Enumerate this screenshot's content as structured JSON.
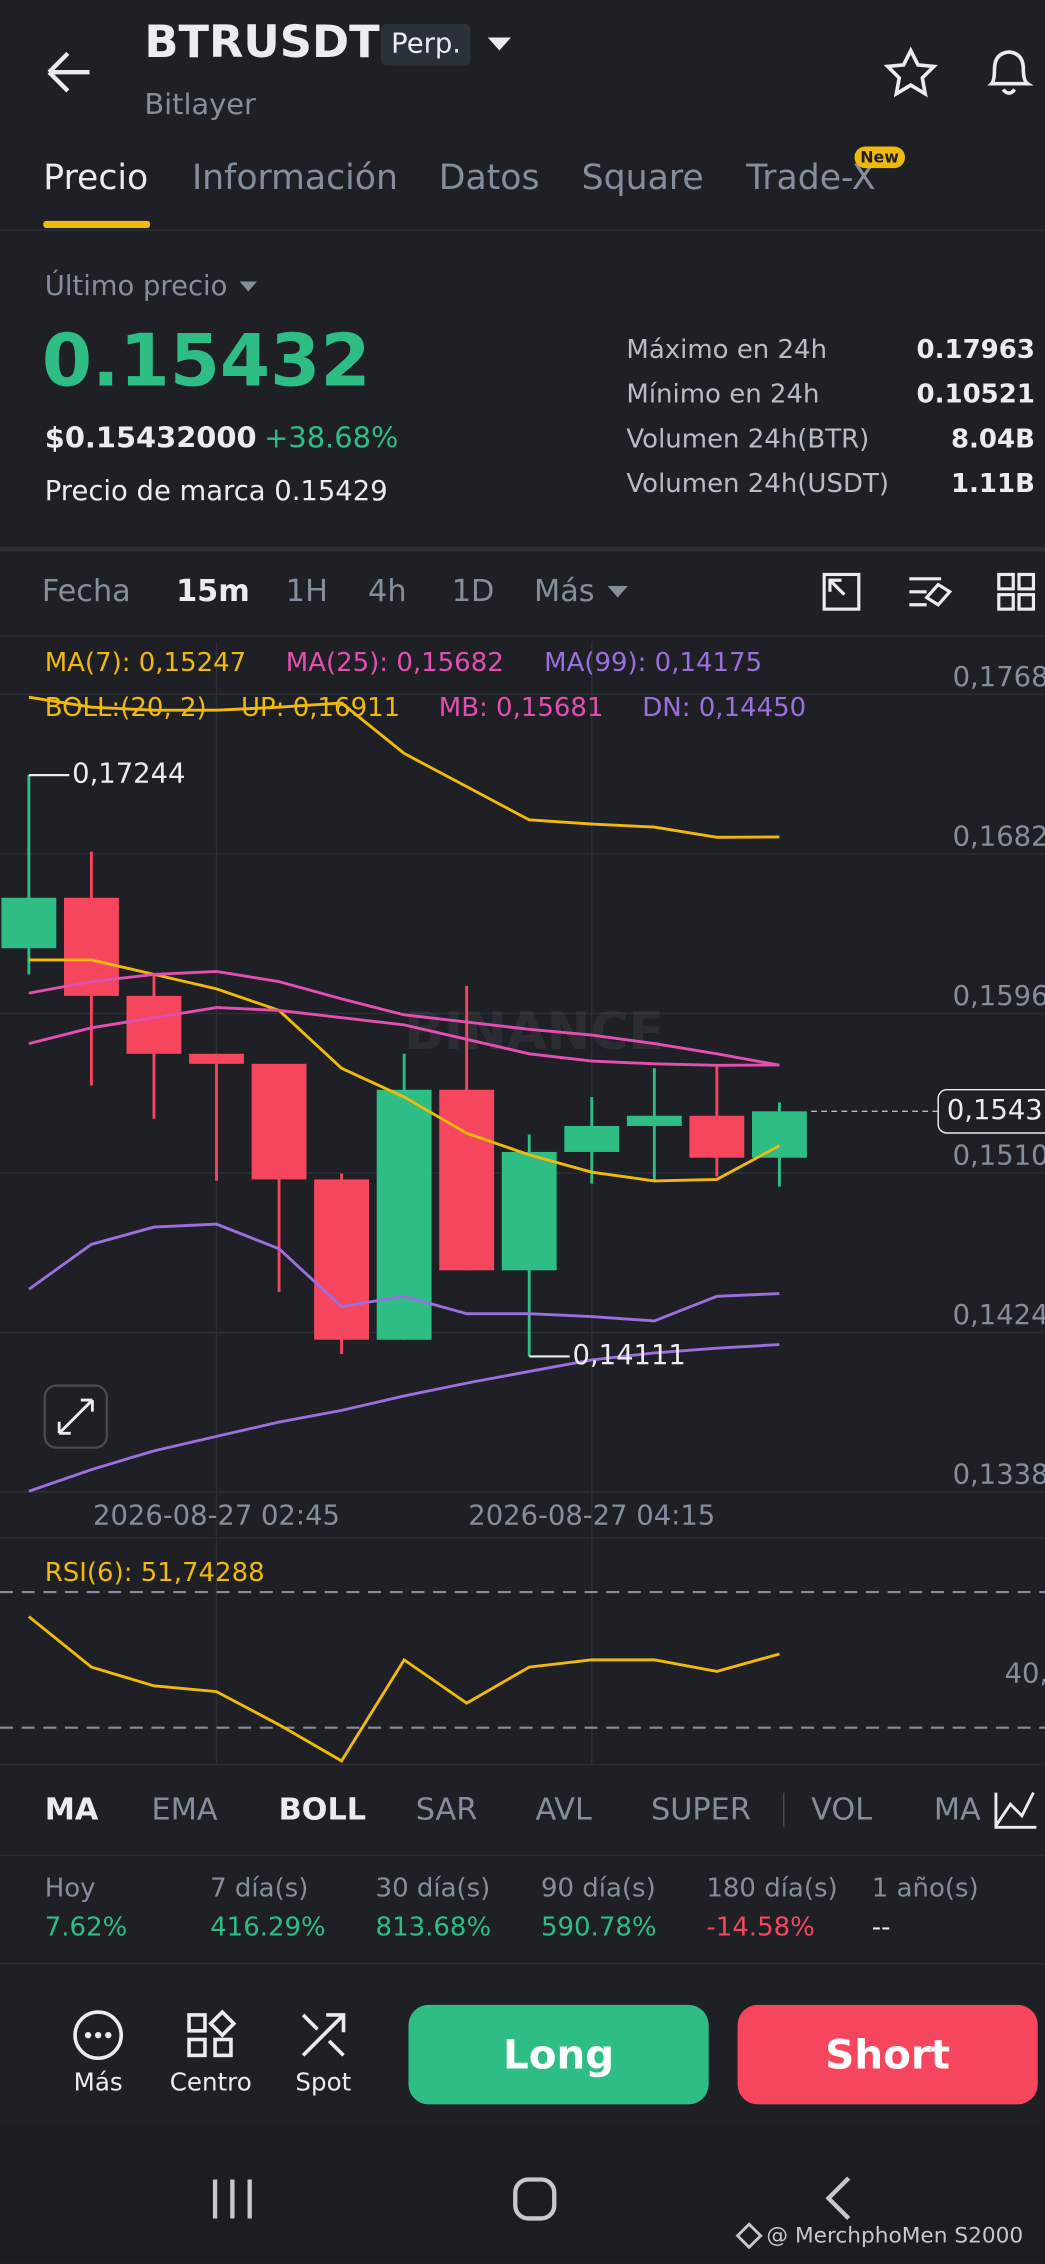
{
  "header": {
    "title": "BTRUSDT",
    "badge": "Perp.",
    "subtitle": "Bitlayer"
  },
  "tabs": {
    "items": [
      "Precio",
      "Información",
      "Datos",
      "Square",
      "Trade-X"
    ],
    "badge": "New"
  },
  "price": {
    "label": "Último precio",
    "last": "0.15432",
    "usd": "$0.15432000",
    "change": "+38.68%",
    "mark_label": "Precio de marca",
    "mark": "0.15429"
  },
  "stats": [
    [
      "Máximo en 24h",
      "0.17963"
    ],
    [
      "Mínimo en 24h",
      "0.10521"
    ],
    [
      "Volumen 24h(BTR)",
      "8.04B"
    ],
    [
      "Volumen 24h(USDT)",
      "1.11B"
    ]
  ],
  "timeframes": [
    "Fecha",
    "15m",
    "1H",
    "4h",
    "1D",
    "Más"
  ],
  "chart_data": [
    {
      "type": "candlestick",
      "categories": [
        null,
        null,
        null,
        "2026-08-27 02:45",
        null,
        null,
        null,
        null,
        null,
        "2026-08-27 04:15",
        null,
        null,
        null
      ],
      "open": [
        0.16311,
        0.16583,
        0.16054,
        0.15742,
        0.15688,
        0.15065,
        0.14201,
        0.15548,
        0.14575,
        0.15213,
        0.15353,
        0.15408,
        0.15182
      ],
      "high": [
        0.17244,
        0.16832,
        0.1617,
        0.15742,
        0.15688,
        0.15096,
        0.15742,
        0.16108,
        0.15307,
        0.15509,
        0.15665,
        0.1568,
        0.1548
      ],
      "low": [
        0.1617,
        0.15571,
        0.15392,
        0.15058,
        0.14458,
        0.14124,
        0.14201,
        0.14575,
        0.14111,
        0.15042,
        0.15058,
        0.15081,
        0.15026
      ],
      "close": [
        0.16583,
        0.16054,
        0.15742,
        0.15688,
        0.15065,
        0.14201,
        0.15548,
        0.14575,
        0.15213,
        0.15353,
        0.15408,
        0.15182,
        0.15432
      ],
      "up_color": "#2ebd85",
      "down_color": "#f6465d",
      "ylim": [
        0.1337,
        0.1796
      ],
      "yticks": [
        {
          "value": 0.1768,
          "label": "0,1768"
        },
        {
          "value": 0.1682,
          "label": "0,1682"
        },
        {
          "value": 0.1596,
          "label": "0,1596"
        },
        {
          "value": 0.151,
          "label": "0,1510"
        },
        {
          "value": 0.1424,
          "label": "0,1424"
        },
        {
          "value": 0.1338,
          "label": "0,1338"
        }
      ],
      "grid": true,
      "overlays": [
        {
          "name": "MA(7): 0,15247",
          "color": "#f0b90b",
          "values": [
            0.16248,
            0.16248,
            0.1617,
            0.16092,
            0.15976,
            0.15664,
            0.15509,
            0.15314,
            0.15197,
            0.15104,
            0.15057,
            0.15065,
            0.15247
          ]
        },
        {
          "name": "MA(25): 0,15682",
          "color": "#e34fb0",
          "values": [
            0.15797,
            0.15882,
            0.15937,
            0.15991,
            0.15976,
            0.15937,
            0.15898,
            0.1582,
            0.15742,
            0.15703,
            0.15688,
            0.1568,
            0.15682
          ]
        },
        {
          "name": "MA(99): 0,14175",
          "color": "#9b6fdc",
          "values": [
            0.13384,
            0.13501,
            0.13602,
            0.1368,
            0.13757,
            0.1382,
            0.13898,
            0.13967,
            0.1403,
            0.14092,
            0.1413,
            0.14155,
            0.14175
          ]
        },
        {
          "name": "UP: 0,16911",
          "color": "#f0b90b",
          "values": [
            0.17664,
            0.1761,
            0.17594,
            0.17594,
            0.1761,
            0.17633,
            0.17361,
            0.17182,
            0.17003,
            0.1698,
            0.16964,
            0.16909,
            0.16911
          ]
        },
        {
          "name": "MB: 0,15681",
          "color": "#e34fb0",
          "values": [
            0.16069,
            0.16131,
            0.1617,
            0.16186,
            0.16131,
            0.16038,
            0.15952,
            0.15913,
            0.15874,
            0.15843,
            0.15797,
            0.15742,
            0.15681
          ]
        },
        {
          "name": "DN: 0,14450",
          "color": "#9b6fdc",
          "values": [
            0.14473,
            0.14715,
            0.14808,
            0.14824,
            0.14691,
            0.1438,
            0.14435,
            0.14341,
            0.14341,
            0.14326,
            0.14302,
            0.14435,
            0.1445
          ]
        }
      ],
      "boll_label": "BOLL:(20, 2)",
      "max_label": {
        "value": 0.17244,
        "label": "0,17244"
      },
      "min_label": {
        "value": 0.14111,
        "label": "0,14111"
      },
      "last_price": {
        "value": 0.15432,
        "label": "0,1543"
      },
      "watermark": "BINANCE"
    },
    {
      "type": "line",
      "title": "RSI(6): 51,74288",
      "color": "#f0b90b",
      "values": [
        62.77,
        47.87,
        42.34,
        40.64,
        30.85,
        20.21,
        50,
        37.23,
        47.87,
        50,
        50,
        46.6,
        51.74288
      ],
      "ylim": [
        20.2,
        79.8
      ],
      "yticks": [
        {
          "value": 40,
          "label": "40,"
        }
      ],
      "reference_lines": [
        70,
        30
      ]
    }
  ],
  "indicators": [
    "MA",
    "EMA",
    "BOLL",
    "SAR",
    "AVL",
    "SUPER",
    "VOL",
    "MA"
  ],
  "performance": {
    "labels": [
      "Hoy",
      "7 día(s)",
      "30 día(s)",
      "90 día(s)",
      "180 día(s)",
      "1 año(s)"
    ],
    "values": [
      "7.62%",
      "416.29%",
      "813.68%",
      "590.78%",
      "-14.58%",
      "--"
    ]
  },
  "actions": [
    "Más",
    "Centro",
    "Spot"
  ],
  "buttons": {
    "long": "Long",
    "short": "Short"
  },
  "footer": {
    "watermark": "@ MerchphoMen S2000"
  }
}
